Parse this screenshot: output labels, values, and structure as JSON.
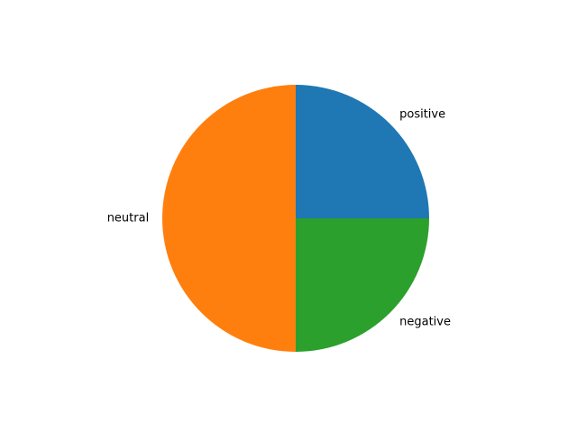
{
  "chart_data": {
    "type": "pie",
    "slices": [
      {
        "label": "positive",
        "value": 25,
        "color": "#1f77b4"
      },
      {
        "label": "neutral",
        "value": 50,
        "color": "#ff7f0e"
      },
      {
        "label": "negative",
        "value": 25,
        "color": "#2ca02c"
      }
    ],
    "start_angle_deg": 0,
    "direction": "counterclockwise",
    "title": "",
    "legend": "none"
  }
}
